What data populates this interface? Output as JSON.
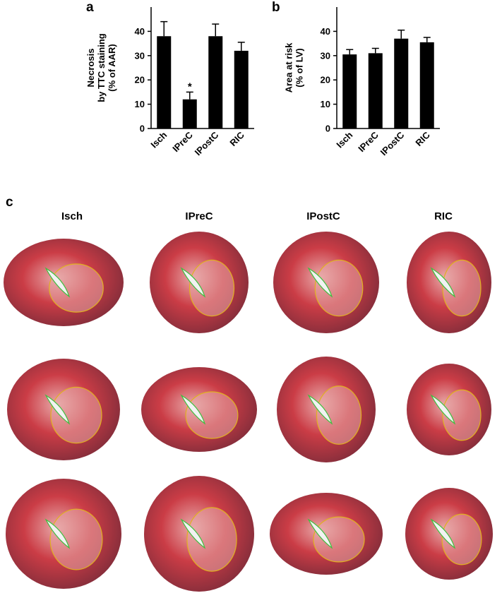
{
  "panels": {
    "a": "a",
    "b": "b",
    "c": "c"
  },
  "chart_data": [
    {
      "type": "bar",
      "panel": "a",
      "categories": [
        "Isch",
        "IPreC",
        "IPostC",
        "RIC"
      ],
      "values": [
        38,
        12,
        38,
        32
      ],
      "errors": [
        6,
        3,
        5,
        3.5
      ],
      "annotations": [
        "",
        "*",
        "",
        ""
      ],
      "ylabel_lines": [
        "Necrosis",
        "by TTC staining",
        "(% of AAR)"
      ],
      "yticks": [
        0,
        10,
        20,
        30,
        40
      ],
      "ylim": [
        0,
        50
      ],
      "bar_color": "#000000"
    },
    {
      "type": "bar",
      "panel": "b",
      "categories": [
        "Isch",
        "IPreC",
        "IPostC",
        "RIC"
      ],
      "values": [
        30.5,
        31,
        37,
        35.5
      ],
      "errors": [
        2,
        2,
        3.5,
        2
      ],
      "annotations": [
        "",
        "",
        "",
        ""
      ],
      "ylabel_lines": [
        "Area at risk",
        "(% of LV)"
      ],
      "yticks": [
        0,
        10,
        20,
        30,
        40
      ],
      "ylim": [
        0,
        50
      ],
      "bar_color": "#000000"
    }
  ],
  "groups": [
    "Isch",
    "IPreC",
    "IPostC",
    "RIC"
  ],
  "tissue_colors": {
    "red": "#c8323c",
    "dark": "#6e1f2e",
    "pale": "#e8a8a8",
    "outline_green": "#3fbf3f",
    "outline_yellow": "#e0b020"
  }
}
